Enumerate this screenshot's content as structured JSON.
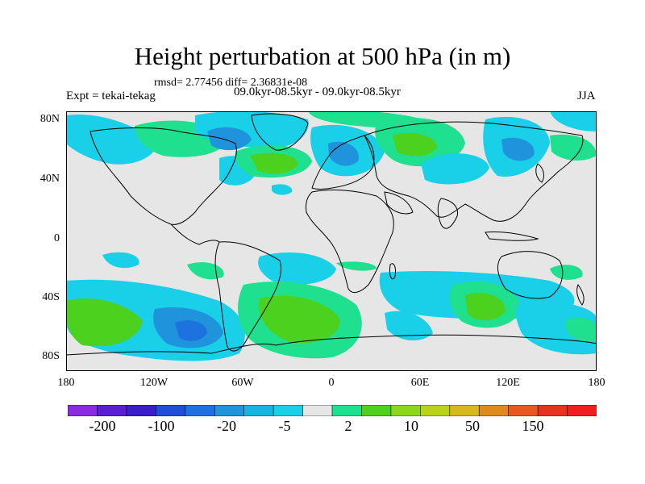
{
  "header": {
    "title": "Height perturbation at 500 hPa (in m)",
    "stats": "rmsd= 2.77456 diff= 2.36831e-08",
    "left_label": "Expt = tekai-tekag",
    "center_label": "09.0kyr-08.5kyr - 09.0kyr-08.5kyr",
    "right_label": "JJA"
  },
  "map": {
    "lat_ticks": [
      "80N",
      "40N",
      "0",
      "40S",
      "80S"
    ],
    "lon_ticks": [
      "180",
      "120W",
      "60W",
      "0",
      "60E",
      "120E",
      "180"
    ],
    "background_color": "#e6e6e6"
  },
  "colorbar": {
    "labels": [
      "-200",
      "-100",
      "-20",
      "-5",
      "2",
      "10",
      "50",
      "150"
    ],
    "colors": [
      "#8a2be2",
      "#5a1fd0",
      "#3a1fc8",
      "#1f4fd6",
      "#1e72e0",
      "#1f94dc",
      "#18b4e3",
      "#1ad0e8",
      "#e6e6e6",
      "#1ee08f",
      "#4cd11e",
      "#8ed61e",
      "#bad11e",
      "#d7b81e",
      "#e08a1e",
      "#e65a1e",
      "#e6331e",
      "#f01e1e"
    ]
  }
}
